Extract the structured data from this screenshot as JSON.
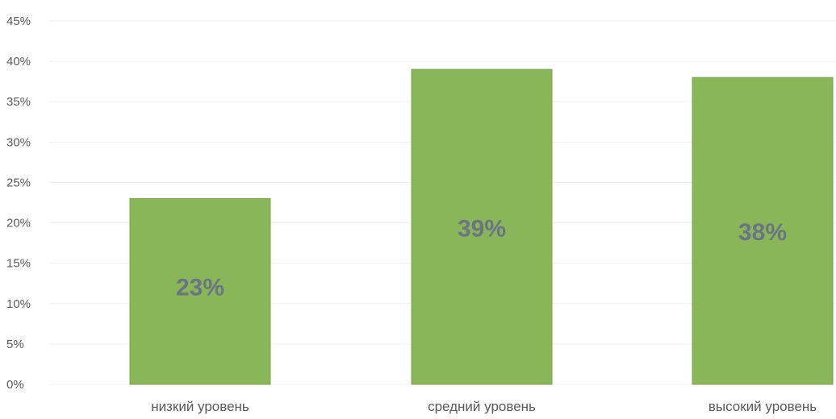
{
  "chart_data": {
    "type": "bar",
    "categories": [
      "низкий уровень",
      "средний уровень",
      "высокий уровень"
    ],
    "values": [
      23,
      39,
      38
    ],
    "data_labels": [
      "23%",
      "39%",
      "38%"
    ],
    "ylim": [
      0,
      45
    ],
    "y_ticks": [
      "0%",
      "5%",
      "10%",
      "15%",
      "20%",
      "25%",
      "30%",
      "35%",
      "40%",
      "45%"
    ],
    "title": "",
    "xlabel": "",
    "ylabel": "",
    "grid": true,
    "legend": false,
    "colors": {
      "bar": "#8ab65a",
      "bar_edge": "#7aa64c",
      "data_label": "#6b7483",
      "tick_label": "#595959"
    }
  }
}
